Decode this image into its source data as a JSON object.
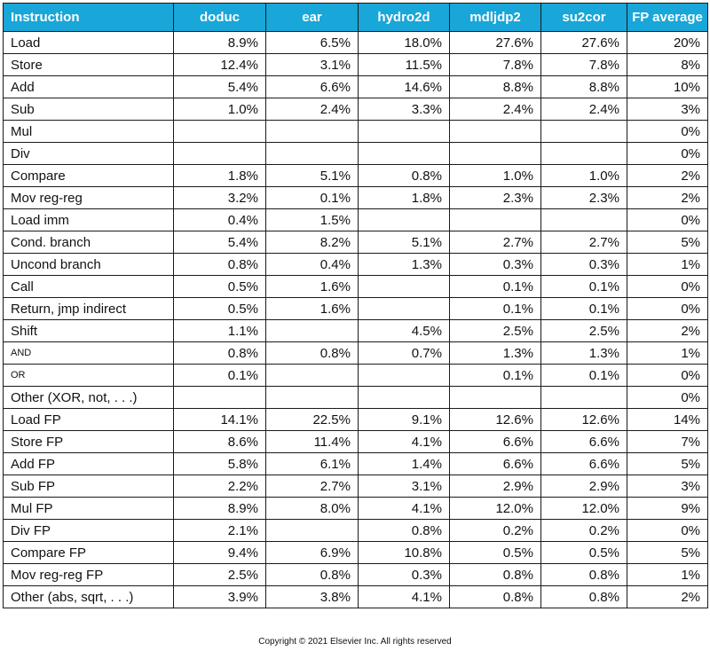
{
  "chart_data": {
    "type": "table",
    "columns": [
      "Instruction",
      "doduc",
      "ear",
      "hydro2d",
      "mdljdp2",
      "su2cor",
      "FP average"
    ],
    "rows": [
      {
        "instruction": "Load",
        "values": [
          "8.9%",
          "6.5%",
          "18.0%",
          "27.6%",
          "27.6%",
          "20%"
        ]
      },
      {
        "instruction": "Store",
        "values": [
          "12.4%",
          "3.1%",
          "11.5%",
          "7.8%",
          "7.8%",
          "8%"
        ]
      },
      {
        "instruction": "Add",
        "values": [
          "5.4%",
          "6.6%",
          "14.6%",
          "8.8%",
          "8.8%",
          "10%"
        ]
      },
      {
        "instruction": "Sub",
        "values": [
          "1.0%",
          "2.4%",
          "3.3%",
          "2.4%",
          "2.4%",
          "3%"
        ]
      },
      {
        "instruction": "Mul",
        "values": [
          "",
          "",
          "",
          "",
          "",
          "0%"
        ]
      },
      {
        "instruction": "Div",
        "values": [
          "",
          "",
          "",
          "",
          "",
          "0%"
        ]
      },
      {
        "instruction": "Compare",
        "values": [
          "1.8%",
          "5.1%",
          "0.8%",
          "1.0%",
          "1.0%",
          "2%"
        ]
      },
      {
        "instruction": "Mov reg-reg",
        "values": [
          "3.2%",
          "0.1%",
          "1.8%",
          "2.3%",
          "2.3%",
          "2%"
        ]
      },
      {
        "instruction": "Load imm",
        "values": [
          "0.4%",
          "1.5%",
          "",
          "",
          "",
          "0%"
        ]
      },
      {
        "instruction": "Cond. branch",
        "values": [
          "5.4%",
          "8.2%",
          "5.1%",
          "2.7%",
          "2.7%",
          "5%"
        ]
      },
      {
        "instruction": "Uncond branch",
        "values": [
          "0.8%",
          "0.4%",
          "1.3%",
          "0.3%",
          "0.3%",
          "1%"
        ]
      },
      {
        "instruction": "Call",
        "values": [
          "0.5%",
          "1.6%",
          "",
          "0.1%",
          "0.1%",
          "0%"
        ]
      },
      {
        "instruction": "Return, jmp indirect",
        "values": [
          "0.5%",
          "1.6%",
          "",
          "0.1%",
          "0.1%",
          "0%"
        ]
      },
      {
        "instruction": "Shift",
        "values": [
          "1.1%",
          "",
          "4.5%",
          "2.5%",
          "2.5%",
          "2%"
        ]
      },
      {
        "instruction": "AND",
        "small": true,
        "values": [
          "0.8%",
          "0.8%",
          "0.7%",
          "1.3%",
          "1.3%",
          "1%"
        ]
      },
      {
        "instruction": "OR",
        "small": true,
        "values": [
          "0.1%",
          "",
          "",
          "0.1%",
          "0.1%",
          "0%"
        ]
      },
      {
        "instruction": "Other (XOR, not, . . .)",
        "values": [
          "",
          "",
          "",
          "",
          "",
          "0%"
        ]
      },
      {
        "instruction": "Load FP",
        "values": [
          "14.1%",
          "22.5%",
          "9.1%",
          "12.6%",
          "12.6%",
          "14%"
        ]
      },
      {
        "instruction": "Store FP",
        "values": [
          "8.6%",
          "11.4%",
          "4.1%",
          "6.6%",
          "6.6%",
          "7%"
        ]
      },
      {
        "instruction": "Add FP",
        "values": [
          "5.8%",
          "6.1%",
          "1.4%",
          "6.6%",
          "6.6%",
          "5%"
        ]
      },
      {
        "instruction": "Sub FP",
        "values": [
          "2.2%",
          "2.7%",
          "3.1%",
          "2.9%",
          "2.9%",
          "3%"
        ]
      },
      {
        "instruction": "Mul FP",
        "values": [
          "8.9%",
          "8.0%",
          "4.1%",
          "12.0%",
          "12.0%",
          "9%"
        ]
      },
      {
        "instruction": "Div FP",
        "values": [
          "2.1%",
          "",
          "0.8%",
          "0.2%",
          "0.2%",
          "0%"
        ]
      },
      {
        "instruction": "Compare FP",
        "values": [
          "9.4%",
          "6.9%",
          "10.8%",
          "0.5%",
          "0.5%",
          "5%"
        ]
      },
      {
        "instruction": "Mov reg-reg FP",
        "values": [
          "2.5%",
          "0.8%",
          "0.3%",
          "0.8%",
          "0.8%",
          "1%"
        ]
      },
      {
        "instruction": "Other (abs, sqrt, . . .)",
        "values": [
          "3.9%",
          "3.8%",
          "4.1%",
          "0.8%",
          "0.8%",
          "2%"
        ]
      }
    ]
  },
  "colors": {
    "header_bg": "#19a6d8",
    "header_text": "#ffffff",
    "border": "#1a1a1a"
  },
  "footer": {
    "copyright": "Copyright © 2021 Elsevier Inc. All rights reserved"
  }
}
